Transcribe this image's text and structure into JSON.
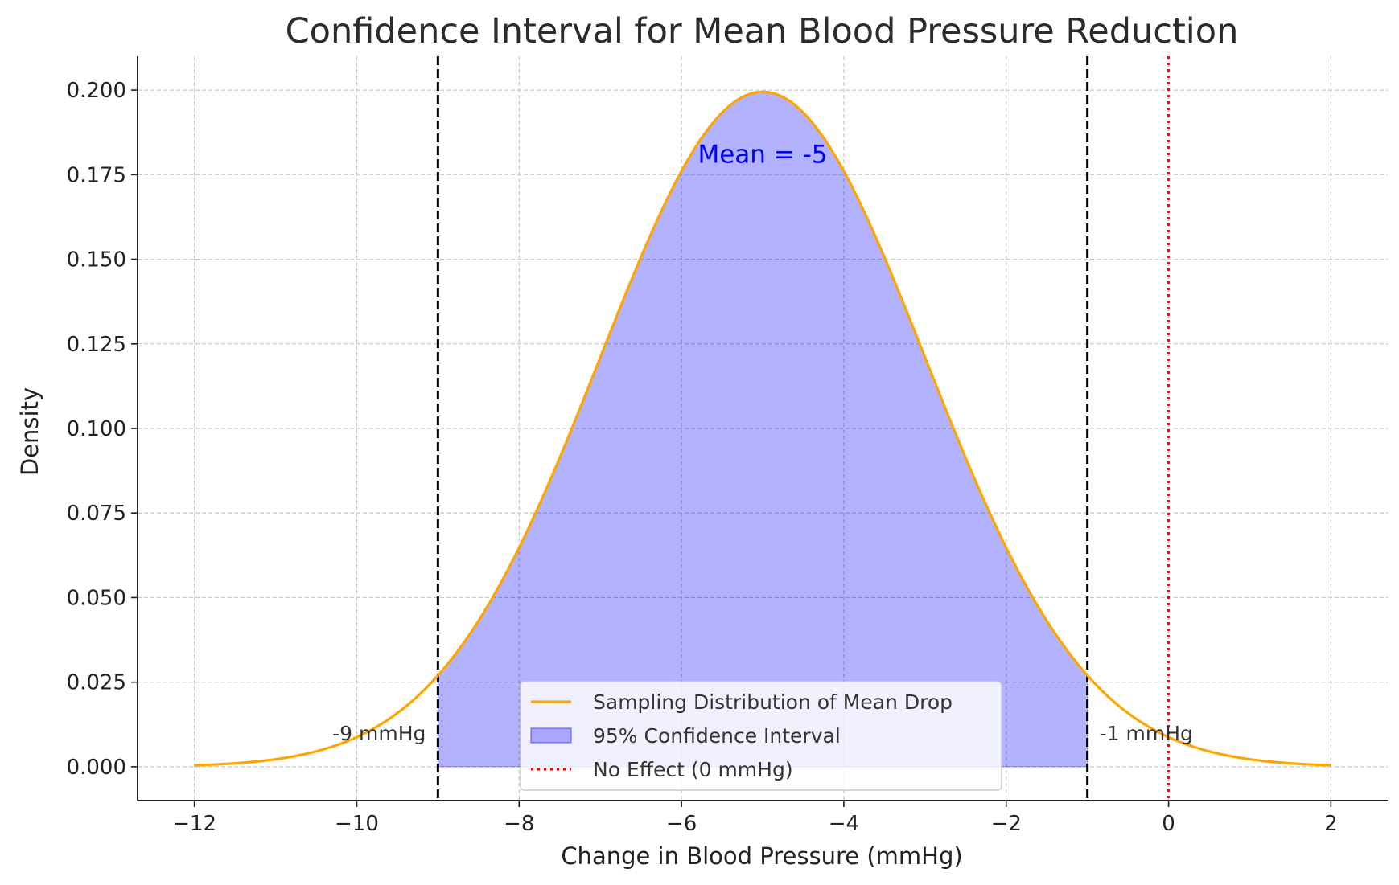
{
  "chart_data": {
    "type": "line",
    "title": "Confidence Interval for Mean Blood Pressure Reduction",
    "xlabel": "Change in Blood Pressure (mmHg)",
    "ylabel": "Density",
    "xlim": [
      -12.7,
      2.7
    ],
    "ylim": [
      -0.01,
      0.21
    ],
    "x_ticks": [
      -12,
      -10,
      -8,
      -6,
      -4,
      -2,
      0,
      2
    ],
    "x_tick_labels": [
      "−12",
      "−10",
      "−8",
      "−6",
      "−4",
      "−2",
      "0",
      "2"
    ],
    "y_ticks": [
      0.0,
      0.025,
      0.05,
      0.075,
      0.1,
      0.125,
      0.15,
      0.175,
      0.2
    ],
    "y_tick_labels": [
      "0.000",
      "0.025",
      "0.050",
      "0.075",
      "0.100",
      "0.125",
      "0.150",
      "0.175",
      "0.200"
    ],
    "grid": true,
    "series": [
      {
        "name": "Sampling Distribution of Mean Drop",
        "kind": "normal-curve",
        "mean": -5,
        "sd": 2,
        "x_range": [
          -12,
          2
        ],
        "color": "#FFA500"
      },
      {
        "name": "95% Confidence Interval",
        "kind": "shaded-area",
        "x_range": [
          -9,
          -1
        ],
        "color": "#0000FF",
        "opacity": 0.3
      },
      {
        "name": "No Effect (0 mmHg)",
        "kind": "vertical-line",
        "x": 0,
        "color": "#FF0000",
        "style": "dotted"
      }
    ],
    "ci_bounds": [
      {
        "x": -9,
        "label": "-9 mmHg",
        "color": "#000000",
        "style": "dashed"
      },
      {
        "x": -1,
        "label": "-1 mmHg",
        "color": "#000000",
        "style": "dashed"
      }
    ],
    "annotations": [
      {
        "text": "Mean = -5",
        "x": -5,
        "y": 0.18,
        "color": "#0000FF"
      }
    ],
    "legend": {
      "placement": "bottom-center",
      "entries": [
        {
          "label": "Sampling Distribution of Mean Drop",
          "marker": "line",
          "color": "#FFA500"
        },
        {
          "label": "95% Confidence Interval",
          "marker": "patch",
          "color": "#0000FF"
        },
        {
          "label": "No Effect (0 mmHg)",
          "marker": "dotted-line",
          "color": "#FF0000"
        }
      ]
    }
  }
}
